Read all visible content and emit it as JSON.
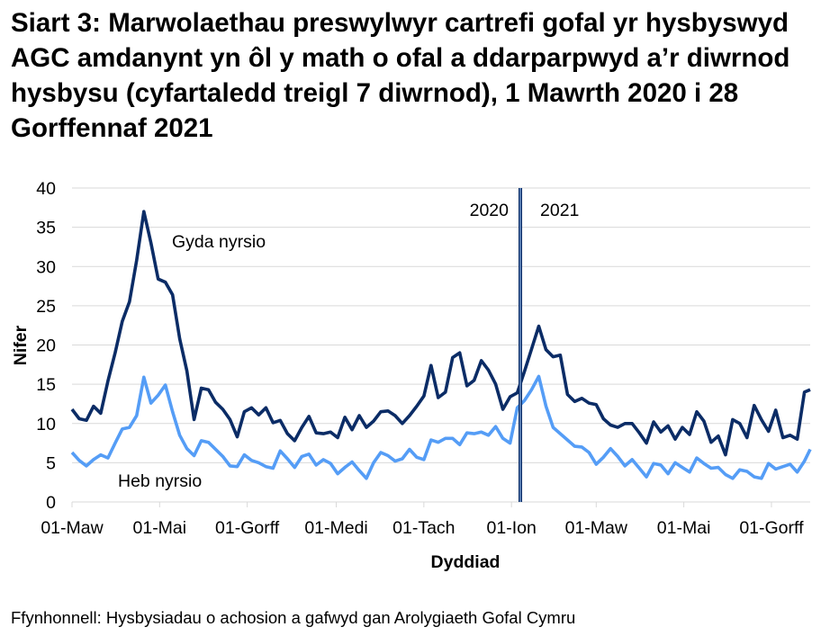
{
  "chart_data": {
    "type": "line",
    "title": "Siart 3: Marwolaethau preswylwyr cartrefi gofal yr hysbyswyd AGC amdanynt yn ôl y math o ofal a ddarparpwyd a’r diwrnod hysbysu (cyfartaledd treigl 7 diwrnod), 1 Mawrth 2020 i 28 Gorffennaf 2021",
    "xlabel": "Dyddiad",
    "ylabel": "Nifer",
    "ylim": [
      0,
      40
    ],
    "yticks": [
      0,
      5,
      10,
      15,
      20,
      25,
      30,
      35,
      40
    ],
    "xlim": [
      "2020-03-01",
      "2021-07-28"
    ],
    "xticks": [
      {
        "date": "2020-03-01",
        "label": "01-Maw"
      },
      {
        "date": "2020-05-01",
        "label": "01-Mai"
      },
      {
        "date": "2020-07-01",
        "label": "01-Gorff"
      },
      {
        "date": "2020-09-01",
        "label": "01-Medi"
      },
      {
        "date": "2020-11-01",
        "label": "01-Tach"
      },
      {
        "date": "2021-01-01",
        "label": "01-Ion"
      },
      {
        "date": "2021-03-01",
        "label": "01-Maw"
      },
      {
        "date": "2021-05-01",
        "label": "01-Mai"
      },
      {
        "date": "2021-07-01",
        "label": "01-Gorff"
      }
    ],
    "grid": "horizontal",
    "year_divider": {
      "left_label": "2020",
      "right_label": "2021"
    },
    "x": [
      "2020-03-01",
      "2020-03-06",
      "2020-03-11",
      "2020-03-16",
      "2020-03-21",
      "2020-03-26",
      "2020-03-31",
      "2020-04-05",
      "2020-04-10",
      "2020-04-15",
      "2020-04-20",
      "2020-04-25",
      "2020-04-30",
      "2020-05-05",
      "2020-05-10",
      "2020-05-15",
      "2020-05-20",
      "2020-05-25",
      "2020-05-30",
      "2020-06-04",
      "2020-06-09",
      "2020-06-14",
      "2020-06-19",
      "2020-06-24",
      "2020-06-29",
      "2020-07-04",
      "2020-07-09",
      "2020-07-14",
      "2020-07-19",
      "2020-07-24",
      "2020-07-29",
      "2020-08-03",
      "2020-08-08",
      "2020-08-13",
      "2020-08-18",
      "2020-08-23",
      "2020-08-28",
      "2020-09-02",
      "2020-09-07",
      "2020-09-12",
      "2020-09-17",
      "2020-09-22",
      "2020-09-27",
      "2020-10-02",
      "2020-10-07",
      "2020-10-12",
      "2020-10-17",
      "2020-10-22",
      "2020-10-27",
      "2020-11-01",
      "2020-11-06",
      "2020-11-11",
      "2020-11-16",
      "2020-11-21",
      "2020-11-26",
      "2020-12-01",
      "2020-12-06",
      "2020-12-11",
      "2020-12-16",
      "2020-12-21",
      "2020-12-26",
      "2020-12-31",
      "2021-01-05",
      "2021-01-10",
      "2021-01-15",
      "2021-01-20",
      "2021-01-25",
      "2021-01-30",
      "2021-02-04",
      "2021-02-09",
      "2021-02-14",
      "2021-02-19",
      "2021-02-24",
      "2021-03-01",
      "2021-03-06",
      "2021-03-11",
      "2021-03-16",
      "2021-03-21",
      "2021-03-26",
      "2021-03-31",
      "2021-04-05",
      "2021-04-10",
      "2021-04-15",
      "2021-04-20",
      "2021-04-25",
      "2021-04-30",
      "2021-05-05",
      "2021-05-10",
      "2021-05-15",
      "2021-05-20",
      "2021-05-25",
      "2021-05-30",
      "2021-06-04",
      "2021-06-09",
      "2021-06-14",
      "2021-06-19",
      "2021-06-24",
      "2021-06-29",
      "2021-07-04",
      "2021-07-09",
      "2021-07-14",
      "2021-07-19",
      "2021-07-24",
      "2021-07-28"
    ],
    "series": [
      {
        "name": "Gyda nyrsio",
        "color": "#0B2C66",
        "values": [
          11.8,
          10.6,
          10.4,
          12.2,
          11.3,
          15.4,
          19,
          23,
          25.5,
          30.8,
          37,
          33,
          28.4,
          28,
          26.4,
          20.8,
          16.7,
          10.5,
          14.5,
          14.3,
          12.7,
          11.8,
          10.5,
          8.3,
          11.5,
          12,
          11.1,
          12,
          10.1,
          10.4,
          8.7,
          7.8,
          9.5,
          10.9,
          8.8,
          8.7,
          8.9,
          8.2,
          10.8,
          9.2,
          11,
          9.5,
          10.3,
          11.5,
          11.6,
          11,
          10,
          11,
          12.2,
          13.5,
          17.4,
          13.3,
          14,
          18.4,
          19,
          14.8,
          15.5,
          18,
          16.8,
          15,
          11.8,
          13.4,
          13.9,
          16.6,
          19.5,
          22.4,
          19.4,
          18.5,
          18.7,
          13.7,
          12.8,
          13.2,
          12.6,
          12.4,
          10.6,
          9.8,
          9.5,
          10,
          10,
          8.8,
          7.5,
          10.2,
          8.9,
          9.7,
          8,
          9.5,
          8.6,
          11.5,
          10.3,
          7.6,
          8.4,
          6,
          10.5,
          10,
          8.2,
          12.3,
          10.5,
          9,
          11.7,
          8.2,
          8.5,
          8,
          14,
          14.3
        ]
      },
      {
        "name": "Heb nyrsio",
        "color": "#559DF6",
        "values": [
          6.3,
          5.3,
          4.6,
          5.4,
          6,
          5.6,
          7.5,
          9.3,
          9.5,
          11,
          15.9,
          12.6,
          13.6,
          14.9,
          11.5,
          8.5,
          6.8,
          5.9,
          7.8,
          7.6,
          6.7,
          5.8,
          4.6,
          4.5,
          6,
          5.3,
          5,
          4.5,
          4.3,
          6.5,
          5.5,
          4.4,
          5.8,
          6.1,
          4.7,
          5.4,
          4.9,
          3.6,
          4.4,
          5.1,
          4,
          3,
          5,
          6.3,
          5.9,
          5.2,
          5.5,
          6.7,
          5.7,
          5.4,
          7.9,
          7.6,
          8.1,
          8.1,
          7.3,
          8.8,
          8.7,
          8.9,
          8.5,
          9.6,
          8.1,
          7.5,
          12,
          12.9,
          14.3,
          16,
          12.2,
          9.5,
          8.7,
          7.9,
          7.1,
          7,
          6.3,
          4.8,
          5.7,
          6.8,
          5.8,
          4.6,
          5.4,
          4.3,
          3.2,
          4.9,
          4.7,
          3.6,
          5,
          4.4,
          3.8,
          5.6,
          4.9,
          4.3,
          4.4,
          3.5,
          3,
          4.1,
          3.9,
          3.2,
          3,
          4.9,
          4.2,
          4.5,
          4.8,
          3.8,
          5.2,
          6.7
        ]
      }
    ]
  },
  "source": "Ffynhonnell: Hysbysiadau o achosion a gafwyd gan Arolygiaeth Gofal Cymru"
}
